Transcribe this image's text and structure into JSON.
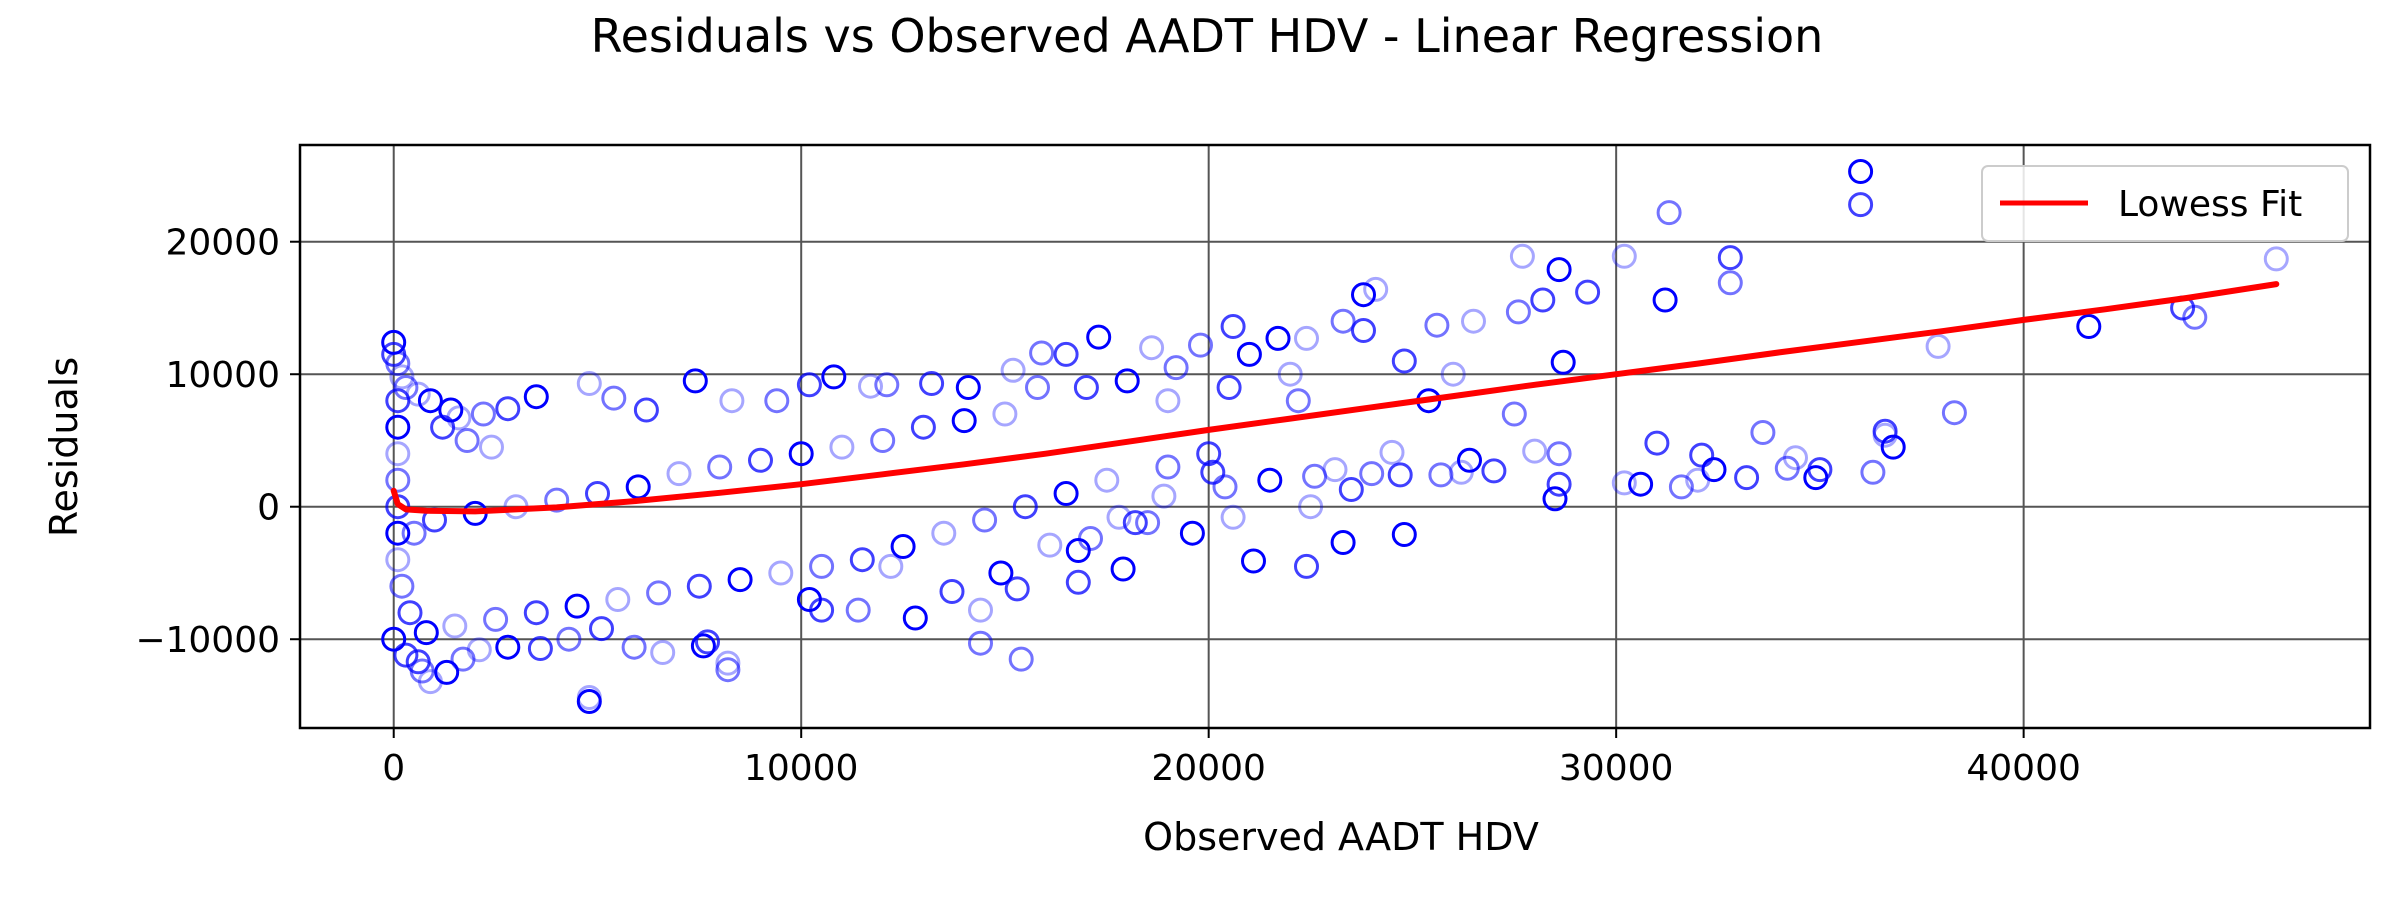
{
  "chart_data": {
    "type": "scatter",
    "title": "Residuals vs Observed AADT HDV - Linear Regression",
    "xlabel": "Observed AADT HDV",
    "ylabel": "Residuals",
    "xlim": [
      -2300,
      48500
    ],
    "ylim": [
      -16700,
      27300
    ],
    "x_ticks": [
      0,
      10000,
      20000,
      30000,
      40000
    ],
    "x_tick_labels": [
      "0",
      "10000",
      "20000",
      "30000",
      "40000"
    ],
    "y_ticks": [
      -10000,
      0,
      10000,
      20000
    ],
    "y_tick_labels": [
      "−10000",
      "0",
      "10000",
      "20000"
    ],
    "grid": true,
    "legend": {
      "position": "top-right",
      "entries": [
        {
          "label": "Lowess Fit",
          "color": "#ff0000"
        }
      ]
    },
    "colors": {
      "points": "#0000ff",
      "lowess": "#ff0000"
    },
    "series": [
      {
        "kind": "scatter",
        "marker": "open-circle",
        "points": [
          [
            0,
            12400
          ],
          [
            0,
            11500
          ],
          [
            100,
            10800
          ],
          [
            200,
            9800
          ],
          [
            0,
            -10000
          ],
          [
            300,
            -11200
          ],
          [
            700,
            -12400
          ],
          [
            900,
            -13200
          ],
          [
            1300,
            -12500
          ],
          [
            600,
            -11700
          ],
          [
            1700,
            -11500
          ],
          [
            2100,
            -10800
          ],
          [
            2800,
            -10600
          ],
          [
            3600,
            -10700
          ],
          [
            4300,
            -10000
          ],
          [
            4800,
            -14400
          ],
          [
            4800,
            -14700
          ],
          [
            5100,
            -9200
          ],
          [
            5900,
            -10600
          ],
          [
            6600,
            -11000
          ],
          [
            7600,
            -10500
          ],
          [
            7700,
            -10200
          ],
          [
            8200,
            -12300
          ],
          [
            8200,
            -11800
          ],
          [
            10200,
            -7000
          ],
          [
            10500,
            -7800
          ],
          [
            11400,
            -7800
          ],
          [
            12200,
            -4500
          ],
          [
            12800,
            -8400
          ],
          [
            13700,
            -6400
          ],
          [
            14400,
            -10300
          ],
          [
            14400,
            -7800
          ],
          [
            14900,
            -5000
          ],
          [
            15300,
            -6200
          ],
          [
            15400,
            -11500
          ],
          [
            16100,
            -2900
          ],
          [
            16800,
            -3300
          ],
          [
            16800,
            -5700
          ],
          [
            17100,
            -2400
          ],
          [
            17800,
            -800
          ],
          [
            17900,
            -4700
          ],
          [
            18200,
            -1200
          ],
          [
            18500,
            -1200
          ],
          [
            18900,
            800
          ],
          [
            19600,
            -2000
          ],
          [
            20100,
            2600
          ],
          [
            20400,
            1500
          ],
          [
            20600,
            -800
          ],
          [
            21100,
            -4100
          ],
          [
            22400,
            -4500
          ],
          [
            22600,
            2300
          ],
          [
            23100,
            2800
          ],
          [
            23300,
            -2700
          ],
          [
            23500,
            1300
          ],
          [
            24000,
            2500
          ],
          [
            24500,
            4100
          ],
          [
            24800,
            -2100
          ],
          [
            24700,
            2400
          ],
          [
            25700,
            2400
          ],
          [
            26200,
            2600
          ],
          [
            26400,
            3500
          ],
          [
            27000,
            2700
          ],
          [
            27500,
            7000
          ],
          [
            28000,
            4200
          ],
          [
            28500,
            600
          ],
          [
            28600,
            1700
          ],
          [
            28600,
            4000
          ],
          [
            30200,
            1800
          ],
          [
            30600,
            1700
          ],
          [
            31000,
            4800
          ],
          [
            31600,
            1500
          ],
          [
            32000,
            2000
          ],
          [
            32400,
            2800
          ],
          [
            32100,
            3900
          ],
          [
            33600,
            5600
          ],
          [
            34400,
            3700
          ],
          [
            34900,
            2200
          ],
          [
            35000,
            2800
          ],
          [
            36300,
            2600
          ],
          [
            36600,
            5400
          ],
          [
            36800,
            4500
          ],
          [
            36600,
            5700
          ],
          [
            38300,
            7100
          ],
          [
            37900,
            12100
          ],
          [
            41600,
            13600
          ],
          [
            43900,
            15000
          ],
          [
            44200,
            14300
          ],
          [
            46200,
            18700
          ],
          [
            36000,
            25300
          ],
          [
            36000,
            22800
          ],
          [
            31300,
            22200
          ],
          [
            30200,
            18900
          ],
          [
            31200,
            15600
          ],
          [
            32800,
            18800
          ],
          [
            32800,
            16900
          ],
          [
            27700,
            18900
          ],
          [
            28600,
            17900
          ],
          [
            29300,
            16200
          ],
          [
            27600,
            14700
          ],
          [
            26500,
            14000
          ],
          [
            28700,
            10900
          ],
          [
            28200,
            15600
          ],
          [
            25600,
            13700
          ],
          [
            24100,
            16400
          ],
          [
            23800,
            16000
          ],
          [
            23800,
            13300
          ],
          [
            23300,
            14000
          ],
          [
            22400,
            12700
          ],
          [
            21700,
            12700
          ],
          [
            20600,
            13600
          ],
          [
            19800,
            12200
          ],
          [
            18600,
            12000
          ],
          [
            17300,
            12800
          ],
          [
            16500,
            11500
          ],
          [
            15900,
            11600
          ],
          [
            15200,
            10300
          ],
          [
            14100,
            9000
          ],
          [
            13200,
            9300
          ],
          [
            12100,
            9200
          ],
          [
            11700,
            9100
          ],
          [
            10800,
            9800
          ],
          [
            10200,
            9200
          ],
          [
            9400,
            8000
          ],
          [
            8300,
            8000
          ],
          [
            7400,
            9500
          ],
          [
            6200,
            7300
          ],
          [
            5400,
            8200
          ],
          [
            4800,
            9300
          ],
          [
            3500,
            8300
          ],
          [
            2800,
            7400
          ],
          [
            2200,
            7000
          ],
          [
            1600,
            6700
          ],
          [
            1400,
            7300
          ],
          [
            33200,
            2200
          ],
          [
            34200,
            2900
          ],
          [
            26000,
            10000
          ],
          [
            25400,
            8000
          ],
          [
            24800,
            11000
          ],
          [
            22200,
            8000
          ],
          [
            22000,
            10000
          ],
          [
            21000,
            11500
          ],
          [
            20500,
            9000
          ],
          [
            19200,
            10500
          ],
          [
            19000,
            8000
          ],
          [
            18000,
            9500
          ],
          [
            17000,
            9000
          ],
          [
            15800,
            9000
          ],
          [
            15000,
            7000
          ],
          [
            14000,
            6500
          ],
          [
            13000,
            6000
          ],
          [
            12000,
            5000
          ],
          [
            11000,
            4500
          ],
          [
            10000,
            4000
          ],
          [
            9000,
            3500
          ],
          [
            8000,
            3000
          ],
          [
            7000,
            2500
          ],
          [
            6000,
            1500
          ],
          [
            5000,
            1000
          ],
          [
            4000,
            500
          ],
          [
            3000,
            0
          ],
          [
            2000,
            -500
          ],
          [
            1000,
            -1000
          ],
          [
            500,
            -2000
          ],
          [
            22500,
            0
          ],
          [
            21500,
            2000
          ],
          [
            20000,
            4000
          ],
          [
            19000,
            3000
          ],
          [
            17500,
            2000
          ],
          [
            16500,
            1000
          ],
          [
            15500,
            0
          ],
          [
            14500,
            -1000
          ],
          [
            13500,
            -2000
          ],
          [
            12500,
            -3000
          ],
          [
            11500,
            -4000
          ],
          [
            10500,
            -4500
          ],
          [
            9500,
            -5000
          ],
          [
            8500,
            -5500
          ],
          [
            7500,
            -6000
          ],
          [
            6500,
            -6500
          ],
          [
            5500,
            -7000
          ],
          [
            4500,
            -7500
          ],
          [
            3500,
            -8000
          ],
          [
            2500,
            -8500
          ],
          [
            1500,
            -9000
          ],
          [
            800,
            -9500
          ],
          [
            400,
            -8000
          ],
          [
            200,
            -6000
          ],
          [
            100,
            -4000
          ],
          [
            100,
            -2000
          ],
          [
            100,
            0
          ],
          [
            100,
            2000
          ],
          [
            100,
            4000
          ],
          [
            100,
            6000
          ],
          [
            100,
            8000
          ],
          [
            300,
            9000
          ],
          [
            600,
            8500
          ],
          [
            900,
            8000
          ],
          [
            1200,
            6000
          ],
          [
            1800,
            5000
          ],
          [
            2400,
            4500
          ]
        ]
      },
      {
        "name": "Lowess Fit",
        "kind": "line",
        "x": [
          0,
          100,
          300,
          800,
          2000,
          4000,
          6000,
          8000,
          10000,
          12000,
          14000,
          16000,
          18000,
          20000,
          22000,
          24000,
          26000,
          28000,
          30000,
          32000,
          34000,
          36000,
          38000,
          40000,
          42000,
          44000,
          46200
        ],
        "y": [
          1200,
          200,
          -200,
          -300,
          -350,
          -50,
          450,
          1050,
          1700,
          2450,
          3200,
          4000,
          4900,
          5800,
          6650,
          7500,
          8350,
          9200,
          10000,
          10800,
          11650,
          12450,
          13250,
          14100,
          14900,
          15750,
          16800
        ]
      }
    ]
  }
}
